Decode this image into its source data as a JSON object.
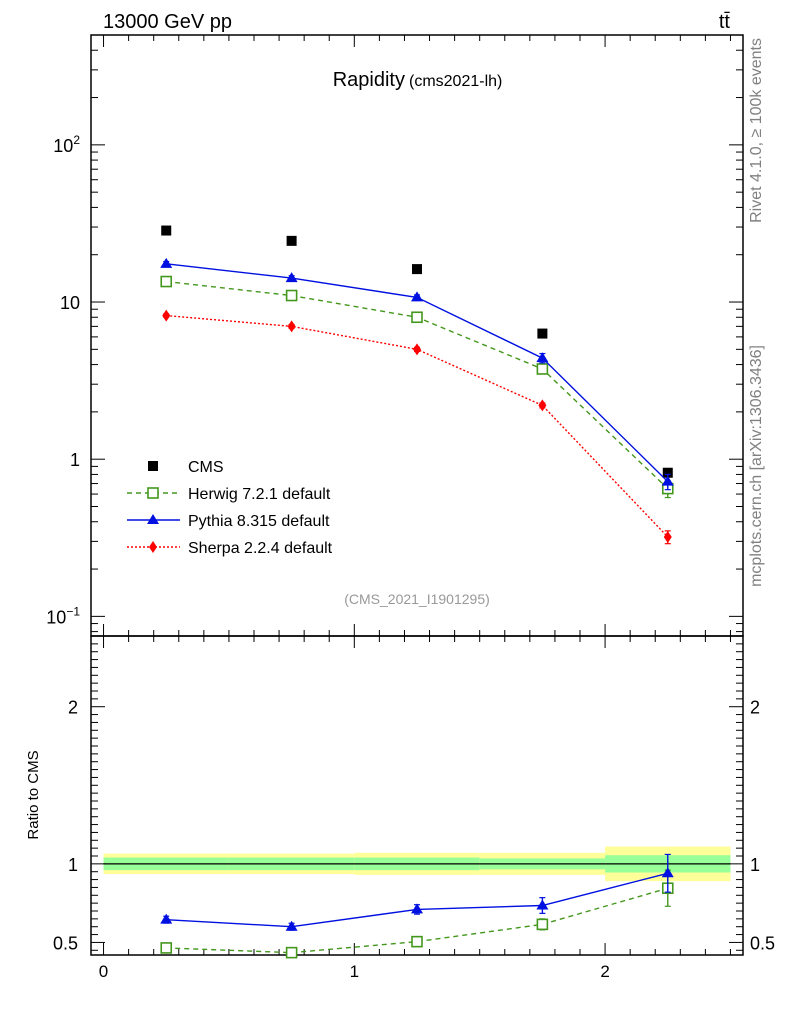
{
  "header": {
    "left": "13000 GeV pp",
    "right": "tt̄"
  },
  "side_text": {
    "upper": "Rivet 4.1.0, ≥ 100k events",
    "lower": "mcplots.cern.ch [arXiv:1306.3436]"
  },
  "chart_data": [
    {
      "type": "scatter",
      "panel": "main",
      "title": "Rapidity",
      "subtitle": "(cms2021-lh)",
      "watermark": "(CMS_2021_I1901295)",
      "yscale": "log",
      "xlim": [
        -0.05,
        2.55
      ],
      "ylim": [
        0.075,
        500
      ],
      "x_ticks": [
        "0",
        "1",
        "2"
      ],
      "y_tick_labels": [
        {
          "value": 0.1,
          "base": "10",
          "exp": "−1"
        },
        {
          "value": 1,
          "base": "1",
          "exp": ""
        },
        {
          "value": 10,
          "base": "10",
          "exp": ""
        },
        {
          "value": 100,
          "base": "10",
          "exp": "2"
        }
      ],
      "x": [
        0.25,
        0.75,
        1.25,
        1.75,
        2.25
      ],
      "series": [
        {
          "name": "CMS",
          "color": "#000000",
          "marker": "square-filled",
          "line": "none",
          "values": [
            28.5,
            24.5,
            16.2,
            6.3,
            0.82
          ]
        },
        {
          "name": "Herwig 7.2.1 default",
          "color": "#44971d",
          "marker": "square-open",
          "line": "dashed",
          "values": [
            13.5,
            11.0,
            8.0,
            3.75,
            0.65
          ],
          "errors": [
            0.5,
            0.4,
            0.3,
            0.15,
            0.08
          ]
        },
        {
          "name": "Pythia 8.315 default",
          "color": "#0010e0",
          "marker": "triangle-filled",
          "line": "solid",
          "values": [
            17.5,
            14.2,
            10.7,
            4.4,
            0.72
          ],
          "errors": [
            0.6,
            0.5,
            0.4,
            0.3,
            0.08
          ]
        },
        {
          "name": "Sherpa 2.2.4 default",
          "color": "#ff0000",
          "marker": "diamond-filled",
          "line": "dotted",
          "values": [
            8.2,
            7.0,
            5.0,
            2.2,
            0.32
          ],
          "errors": [
            0.2,
            0.2,
            0.15,
            0.08,
            0.03
          ]
        }
      ],
      "legend_position": "bottom-left"
    },
    {
      "type": "scatter",
      "panel": "ratio",
      "ylabel": "Ratio to CMS",
      "ylim": [
        0.42,
        2.45
      ],
      "xlim": [
        -0.05,
        2.55
      ],
      "x_ticks": [
        "0",
        "1",
        "2"
      ],
      "y_ticks": [
        "0.5",
        "1",
        "2"
      ],
      "reference": 1,
      "bands": {
        "bin_edges": [
          0,
          0.5,
          1.0,
          1.5,
          2.0,
          2.5
        ],
        "stat_syst_half_width": [
          0.065,
          0.065,
          0.07,
          0.07,
          0.11
        ],
        "stat_half_width": [
          0.04,
          0.04,
          0.04,
          0.035,
          0.055
        ]
      },
      "x": [
        0.25,
        0.75,
        1.25,
        1.75,
        2.25
      ],
      "series": [
        {
          "name": "Herwig 7.2.1 default",
          "color": "#44971d",
          "marker": "square-open",
          "line": "dashed",
          "values": [
            0.465,
            0.435,
            0.505,
            0.615,
            0.845
          ],
          "errors": [
            0.015,
            0.015,
            0.02,
            0.035,
            0.115
          ]
        },
        {
          "name": "Pythia 8.315 default",
          "color": "#0010e0",
          "marker": "triangle-filled",
          "line": "solid",
          "values": [
            0.645,
            0.6,
            0.71,
            0.735,
            0.94
          ],
          "errors": [
            0.022,
            0.022,
            0.03,
            0.05,
            0.12
          ]
        }
      ]
    }
  ]
}
